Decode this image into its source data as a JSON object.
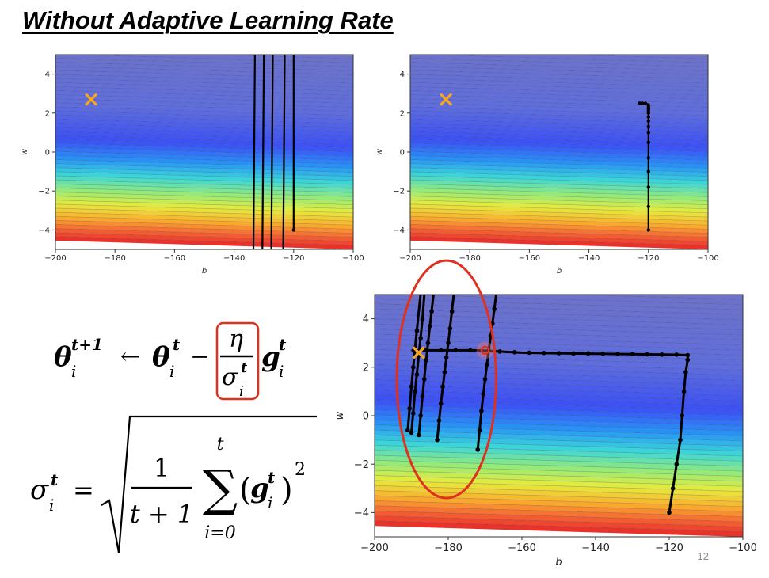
{
  "slide": {
    "title": "Without Adaptive Learning Rate",
    "page_number": "12"
  },
  "formulas": {
    "update": {
      "lhs": "θ",
      "lhs_sub": "i",
      "lhs_sup": "t+1",
      "arrow": "←",
      "theta": "θ",
      "theta_sub": "i",
      "theta_sup": "t",
      "minus": "−",
      "eta": "η",
      "sigma": "σ",
      "sigma_sub": "i",
      "sigma_sup": "t",
      "g": "g",
      "g_sub": "i",
      "g_sup": "t"
    },
    "sigma": {
      "lhs": "σ",
      "lhs_sub": "i",
      "lhs_sup": "t",
      "equals": "=",
      "numerator": "1",
      "denominator": "t + 1",
      "sum_upper": "t",
      "sum_lower": "i=0",
      "sum_symbol": "∑",
      "g": "g",
      "g_sub": "i",
      "g_sup": "t",
      "paren_open": "(",
      "paren_close": ")",
      "power": "2"
    }
  },
  "colors": {
    "highlight": "#e0301e",
    "target_marker": "#f5a623",
    "path": "#000000"
  },
  "chart_data": [
    {
      "id": "top-left",
      "type": "contour",
      "xlabel": "b",
      "ylabel": "w",
      "xlim": [
        -200,
        -100
      ],
      "ylim": [
        -5,
        5
      ],
      "xticks": [
        -200,
        -180,
        -160,
        -140,
        -120,
        -100
      ],
      "yticks": [
        -4,
        -2,
        0,
        2,
        4
      ],
      "target": {
        "b": -188,
        "w": 2.7
      },
      "paths": [
        {
          "points": [
            [
              -120,
              -4
            ],
            [
              -120,
              5
            ]
          ],
          "markers": [
            [
              -120,
              -4
            ]
          ]
        },
        {
          "points": [
            [
              -123,
              5
            ],
            [
              -123.5,
              -5
            ]
          ],
          "markers": []
        },
        {
          "points": [
            [
              -127,
              5
            ],
            [
              -127.5,
              -5
            ]
          ],
          "markers": []
        },
        {
          "points": [
            [
              -130,
              5
            ],
            [
              -130.5,
              -5
            ]
          ],
          "markers": []
        },
        {
          "points": [
            [
              -133,
              5
            ],
            [
              -133.5,
              -5
            ]
          ],
          "markers": []
        }
      ]
    },
    {
      "id": "top-right",
      "type": "contour",
      "xlabel": "b",
      "ylabel": "w",
      "xlim": [
        -200,
        -100
      ],
      "ylim": [
        -5,
        5
      ],
      "xticks": [
        -200,
        -180,
        -160,
        -140,
        -120,
        -100
      ],
      "yticks": [
        -4,
        -2,
        0,
        2,
        4
      ],
      "target": {
        "b": -188,
        "w": 2.7
      },
      "paths": [
        {
          "points": [
            [
              -120,
              -4
            ],
            [
              -120,
              -2.8
            ],
            [
              -120,
              -1
            ],
            [
              -120,
              0.5
            ],
            [
              -120,
              1.3
            ],
            [
              -120,
              1.8
            ],
            [
              -120,
              2.1
            ],
            [
              -120,
              2.3
            ],
            [
              -120,
              2.45
            ],
            [
              -121,
              2.5
            ],
            [
              -122,
              2.5
            ],
            [
              -123.5,
              2.5
            ]
          ],
          "markers": [
            [
              -120,
              -4
            ],
            [
              -120,
              -2.8
            ],
            [
              -120,
              -1.8
            ],
            [
              -120,
              -1
            ],
            [
              -120,
              -0.3
            ],
            [
              -120,
              0.5
            ],
            [
              -120,
              1
            ],
            [
              -120,
              1.3
            ],
            [
              -120,
              1.6
            ],
            [
              -120,
              1.8
            ],
            [
              -120,
              2.0
            ],
            [
              -120,
              2.1
            ],
            [
              -120,
              2.2
            ],
            [
              -120,
              2.3
            ],
            [
              -120,
              2.4
            ],
            [
              -121,
              2.5
            ],
            [
              -122,
              2.5
            ],
            [
              -123,
              2.5
            ]
          ]
        }
      ]
    },
    {
      "id": "bottom",
      "type": "contour",
      "xlabel": "b",
      "ylabel": "w",
      "xlim": [
        -200,
        -100
      ],
      "ylim": [
        -5,
        5
      ],
      "xticks": [
        -200,
        -180,
        -160,
        -140,
        -120,
        -100
      ],
      "yticks": [
        -4,
        -2,
        0,
        2,
        4
      ],
      "target": {
        "b": -188,
        "w": 2.6
      },
      "highlight_point": {
        "b": -170,
        "w": 2.7
      },
      "highlight_ellipse": {
        "cx": -180.5,
        "cy": 1.5,
        "rx": 13.5,
        "ry": 4.9
      },
      "paths": [
        {
          "points": [
            [
              -120,
              -4
            ],
            [
              -119,
              -3
            ],
            [
              -118,
              -2
            ],
            [
              -117,
              -1
            ],
            [
              -116.5,
              0
            ],
            [
              -116,
              1
            ],
            [
              -115.5,
              1.8
            ],
            [
              -115,
              2.3
            ],
            [
              -115,
              2.5
            ],
            [
              -120,
              2.52
            ],
            [
              -135,
              2.55
            ],
            [
              -150,
              2.58
            ],
            [
              -160,
              2.6
            ],
            [
              -166,
              2.65
            ],
            [
              -172,
              2.7
            ],
            [
              -180,
              2.7
            ],
            [
              -186,
              2.7
            ],
            [
              -190,
              2.7
            ]
          ],
          "markers": [
            [
              -120,
              -4
            ],
            [
              -119,
              -3
            ],
            [
              -118,
              -2
            ],
            [
              -117,
              -1
            ],
            [
              -116.5,
              0
            ],
            [
              -116,
              1
            ],
            [
              -115.5,
              1.8
            ],
            [
              -115,
              2.3
            ],
            [
              -115,
              2.5
            ],
            [
              -118,
              2.52
            ],
            [
              -122,
              2.52
            ],
            [
              -126,
              2.53
            ],
            [
              -130,
              2.54
            ],
            [
              -134,
              2.55
            ],
            [
              -138,
              2.56
            ],
            [
              -142,
              2.57
            ],
            [
              -146,
              2.57
            ],
            [
              -150,
              2.58
            ],
            [
              -154,
              2.59
            ],
            [
              -158,
              2.6
            ],
            [
              -162,
              2.62
            ],
            [
              -166,
              2.65
            ],
            [
              -174,
              2.7
            ],
            [
              -178,
              2.7
            ],
            [
              -182,
              2.7
            ],
            [
              -186,
              2.7
            ]
          ]
        },
        {
          "points": [
            [
              -172,
              -1.4
            ],
            [
              -171,
              0.2
            ],
            [
              -170,
              1.5
            ],
            [
              -169,
              2.7
            ],
            [
              -168,
              3.8
            ],
            [
              -167,
              5
            ]
          ],
          "markers": [
            [
              -172,
              -1.4
            ],
            [
              -171.5,
              -0.6
            ],
            [
              -171,
              0.2
            ],
            [
              -170.5,
              0.9
            ],
            [
              -170,
              1.5
            ],
            [
              -169.5,
              2.1
            ],
            [
              -169,
              2.7
            ],
            [
              -168.5,
              3.3
            ],
            [
              -168,
              3.8
            ],
            [
              -167.5,
              4.4
            ]
          ]
        },
        {
          "points": [
            [
              -183,
              -1.0
            ],
            [
              -182,
              0.5
            ],
            [
              -181,
              1.8
            ],
            [
              -180,
              3.0
            ],
            [
              -178.5,
              5
            ]
          ],
          "markers": [
            [
              -183,
              -1.0
            ],
            [
              -182.5,
              -0.2
            ],
            [
              -182,
              0.5
            ],
            [
              -181.5,
              1.2
            ],
            [
              -181,
              1.8
            ],
            [
              -180.5,
              2.4
            ],
            [
              -180,
              3.0
            ],
            [
              -179.5,
              3.6
            ],
            [
              -179,
              4.3
            ]
          ]
        },
        {
          "points": [
            [
              -188,
              -0.8
            ],
            [
              -187,
              0.8
            ],
            [
              -186,
              2.3
            ],
            [
              -185,
              3.7
            ],
            [
              -184,
              5
            ]
          ],
          "markers": [
            [
              -188,
              -0.8
            ],
            [
              -187.5,
              0
            ],
            [
              -187,
              0.8
            ],
            [
              -186.5,
              1.5
            ],
            [
              -186,
              2.3
            ],
            [
              -185.5,
              3.0
            ],
            [
              -185,
              3.7
            ],
            [
              -184.5,
              4.3
            ]
          ]
        },
        {
          "points": [
            [
              -190,
              -0.7
            ],
            [
              -189,
              1
            ],
            [
              -188,
              2.5
            ],
            [
              -187,
              4
            ],
            [
              -186.5,
              5
            ]
          ],
          "markers": [
            [
              -190,
              -0.7
            ],
            [
              -189.5,
              0.1
            ],
            [
              -189,
              1
            ],
            [
              -188.5,
              1.7
            ],
            [
              -188,
              2.5
            ],
            [
              -187.5,
              3.2
            ],
            [
              -187,
              4
            ]
          ]
        },
        {
          "points": [
            [
              -191,
              -0.6
            ],
            [
              -190,
              1.2
            ],
            [
              -189,
              2.8
            ],
            [
              -188,
              4.3
            ],
            [
              -187.5,
              5
            ]
          ],
          "markers": [
            [
              -191,
              -0.6
            ],
            [
              -190.5,
              0.3
            ],
            [
              -190,
              1.2
            ],
            [
              -189.5,
              2
            ],
            [
              -189,
              2.8
            ],
            [
              -188.5,
              3.5
            ]
          ]
        }
      ]
    }
  ]
}
